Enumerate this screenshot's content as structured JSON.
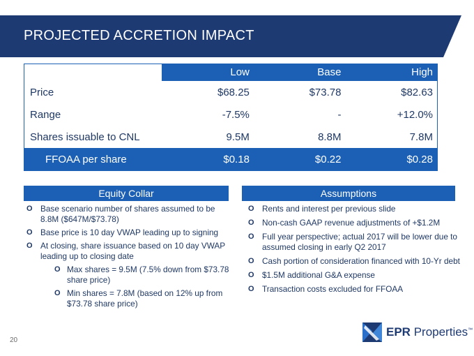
{
  "title": "PROJECTED ACCRETION IMPACT",
  "table": {
    "headers": [
      "Low",
      "Base",
      "High"
    ],
    "rows": [
      {
        "label": "Price",
        "values": [
          "$68.25",
          "$73.78",
          "$82.63"
        ]
      },
      {
        "label": "Range",
        "values": [
          "-7.5%",
          "-",
          "+12.0%"
        ]
      },
      {
        "label": "Shares issuable to CNL",
        "values": [
          "9.5M",
          "8.8M",
          "7.8M"
        ]
      },
      {
        "label": "FFOAA per share",
        "values": [
          "$0.18",
          "$0.22",
          "$0.28"
        ]
      }
    ]
  },
  "equity_collar": {
    "heading": "Equity Collar",
    "bullets": [
      "Base scenario number of shares assumed to be 8.8M ($647M/$73.78)",
      "Base price is 10 day VWAP leading up to signing",
      "At closing, share issuance  based on 10 day VWAP leading up to closing date"
    ],
    "sub_bullets": [
      "Max shares = 9.5M (7.5% down from $73.78 share price)",
      "Min shares = 7.8M (based on 12% up from $73.78 share price)"
    ]
  },
  "assumptions": {
    "heading": "Assumptions",
    "bullets": [
      "Rents and interest per previous slide",
      "Non-cash GAAP revenue adjustments of +$1.2M",
      "Full year perspective; actual 2017 will be lower due to assumed closing in early Q2 2017",
      "Cash portion of consideration financed with 10-Yr debt",
      "$1.5M additional G&A expense",
      "Transaction costs excluded for FFOAA"
    ]
  },
  "bullet_marker": "O",
  "page_number": "20",
  "logo": {
    "bold": "EPR",
    "rest": " Properties",
    "tm": "™"
  },
  "colors": {
    "navy": "#1e3a73",
    "accent_blue": "#1c60b5",
    "text": "#1f3864"
  }
}
